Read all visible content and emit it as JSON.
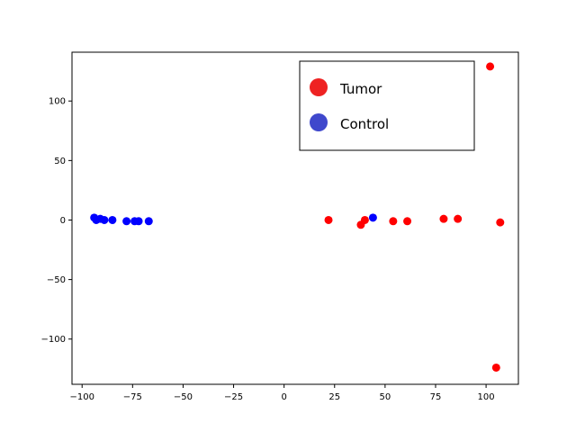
{
  "chart_data": {
    "type": "scatter",
    "title": "",
    "xlabel": "",
    "ylabel": "",
    "xlim": [
      -105,
      116
    ],
    "ylim": [
      -138,
      141
    ],
    "xticks": [
      -100,
      -75,
      -50,
      -25,
      0,
      25,
      50,
      75,
      100
    ],
    "yticks": [
      -100,
      -50,
      0,
      50,
      100
    ],
    "xtick_labels": [
      "−100",
      "−75",
      "−50",
      "−25",
      "0",
      "25",
      "50",
      "75",
      "100"
    ],
    "ytick_labels": [
      "−100",
      "−50",
      "0",
      "50",
      "100"
    ],
    "grid": false,
    "legend_position": "top-right",
    "series": [
      {
        "name": "Tumor",
        "color": "#ff0000",
        "legend_color": "#ee2222",
        "x": [
          102,
          105,
          22,
          38,
          40,
          54,
          61,
          79,
          86,
          107
        ],
        "y": [
          129,
          -124,
          0,
          -4,
          0,
          -1,
          -1,
          1,
          1,
          -2
        ]
      },
      {
        "name": "Control",
        "color": "#0000ff",
        "legend_color": "#3f48cc",
        "x": [
          -94,
          -93,
          -91,
          -89,
          -85,
          -78,
          -74,
          -72,
          -67,
          44
        ],
        "y": [
          2,
          0,
          1,
          0,
          0,
          -1,
          -1,
          -1,
          -1,
          2
        ]
      }
    ]
  }
}
